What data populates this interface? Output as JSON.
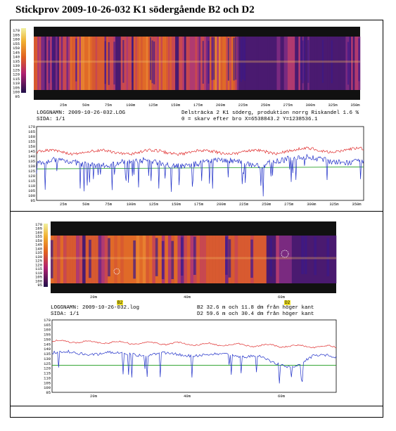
{
  "title": "Stickprov 2009-10-26-032 K1 södergående B2 och D2",
  "panel1": {
    "heat_scale": [
      "170",
      "165",
      "160",
      "155",
      "150",
      "145",
      "140",
      "135",
      "130",
      "125",
      "120",
      "115",
      "110",
      "105",
      "100",
      "95"
    ],
    "heat_xticks": [
      "25m",
      "50m",
      "75m",
      "100m",
      "125m",
      "150m",
      "175m",
      "200m",
      "225m",
      "250m",
      "275m",
      "300m",
      "325m",
      "350m"
    ],
    "log_label": "LOGGNAMN: 2009-10-26-032.LOG",
    "page_label": "SIDA: 1/1",
    "info_line1": "Delsträcka 2 K1 söderg, produktion norrg Riskandel 1.6 %",
    "info_line2": "0 = skarv efter bro X=6538843.2 Y=1238536.1",
    "chart_scale": [
      "170",
      "165",
      "160",
      "155",
      "150",
      "145",
      "140",
      "135",
      "130",
      "125",
      "120",
      "115",
      "110",
      "105",
      "100",
      "95"
    ],
    "chart_xticks": [
      "25m",
      "50m",
      "75m",
      "100m",
      "125m",
      "150m",
      "175m",
      "200m",
      "225m",
      "250m",
      "275m",
      "300m",
      "325m",
      "350m"
    ]
  },
  "panel2": {
    "heat_scale": [
      "170",
      "165",
      "160",
      "155",
      "150",
      "145",
      "140",
      "135",
      "130",
      "125",
      "120",
      "115",
      "110",
      "105",
      "100",
      "95"
    ],
    "heat_xticks": [
      "20m",
      "40m",
      "60m"
    ],
    "marker_b2": "B2",
    "marker_d2": "D2",
    "log_label": "LOGGNAMN: 2009-10-26-032.log",
    "page_label": "SIDA: 1/1",
    "info_line1": "B2 32.6 m och 11.8 dm från höger kant",
    "info_line2": "D2 59.6 m och 30.4 dm från höger kant",
    "chart_scale": [
      "170",
      "165",
      "160",
      "155",
      "150",
      "145",
      "140",
      "135",
      "130",
      "125",
      "120",
      "115",
      "110",
      "105",
      "100",
      "95"
    ],
    "chart_xticks": [
      "20m",
      "40m",
      "60m"
    ]
  },
  "colors": {
    "max_line": "#e03030",
    "mean_line": "#2030c8",
    "ref_line": "#1a9a1a",
    "heat_hot": "#e8701c",
    "heat_cold": "#3a1a7a"
  }
}
